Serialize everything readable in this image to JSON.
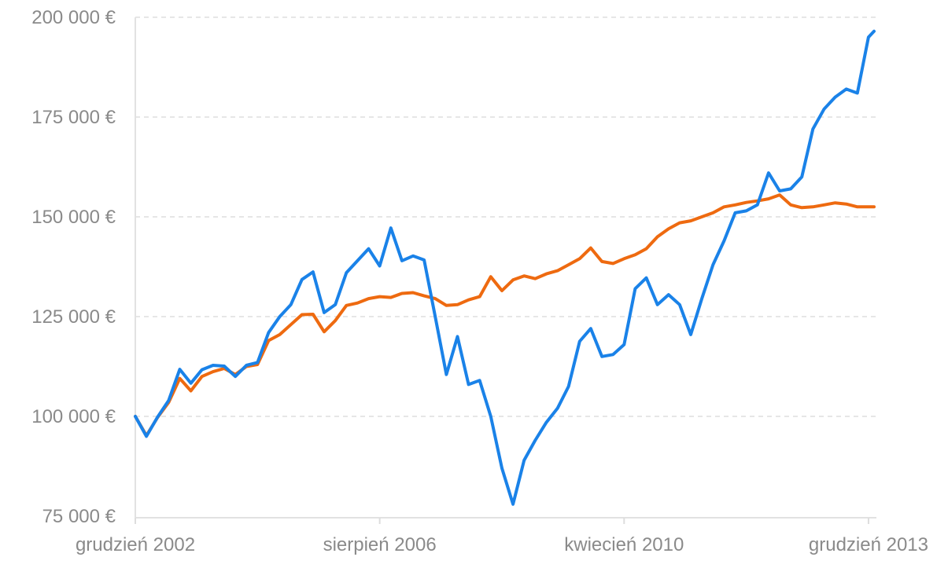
{
  "chart_data": {
    "type": "line",
    "title": "",
    "xlabel": "",
    "ylabel": "",
    "ylim": [
      75000,
      200000
    ],
    "yticks": [
      {
        "value": 75000,
        "label": "75 000 €"
      },
      {
        "value": 100000,
        "label": "100 000 €"
      },
      {
        "value": 125000,
        "label": "125 000 €"
      },
      {
        "value": 150000,
        "label": "150 000 €"
      },
      {
        "value": 175000,
        "label": "175 000 €"
      },
      {
        "value": 200000,
        "label": "200 000 €"
      }
    ],
    "xticks": [
      {
        "x": "2002-12",
        "label": "grudzień 2002"
      },
      {
        "x": "2006-08",
        "label": "sierpień 2006"
      },
      {
        "x": "2010-04",
        "label": "kwiecień 2010"
      },
      {
        "x": "2013-12",
        "label": "grudzień 2013"
      }
    ],
    "x": [
      "2002-12",
      "2003-02",
      "2003-04",
      "2003-06",
      "2003-08",
      "2003-10",
      "2003-12",
      "2004-02",
      "2004-04",
      "2004-06",
      "2004-08",
      "2004-10",
      "2004-12",
      "2005-02",
      "2005-04",
      "2005-06",
      "2005-08",
      "2005-10",
      "2005-12",
      "2006-02",
      "2006-04",
      "2006-06",
      "2006-08",
      "2006-10",
      "2006-12",
      "2007-02",
      "2007-04",
      "2007-06",
      "2007-08",
      "2007-10",
      "2007-12",
      "2008-02",
      "2008-04",
      "2008-06",
      "2008-08",
      "2008-10",
      "2008-12",
      "2009-02",
      "2009-04",
      "2009-06",
      "2009-08",
      "2009-10",
      "2009-12",
      "2010-02",
      "2010-04",
      "2010-06",
      "2010-08",
      "2010-10",
      "2010-12",
      "2011-02",
      "2011-04",
      "2011-06",
      "2011-08",
      "2011-10",
      "2011-12",
      "2012-02",
      "2012-04",
      "2012-06",
      "2012-08",
      "2012-10",
      "2012-12",
      "2013-02",
      "2013-04",
      "2013-06",
      "2013-08",
      "2013-10",
      "2013-12",
      "2014-01"
    ],
    "series": [
      {
        "color": "#1a82e8",
        "values": [
          100000,
          95000,
          99800,
          104000,
          111800,
          108300,
          111700,
          112800,
          112600,
          110000,
          112800,
          113500,
          121000,
          125000,
          128000,
          134300,
          136200,
          126000,
          128000,
          136000,
          139000,
          142000,
          137700,
          147200,
          139000,
          140200,
          139200,
          125000,
          110500,
          120000,
          108000,
          109000,
          100000,
          87000,
          78000,
          89000,
          94000,
          98500,
          102000,
          107500,
          118800,
          122000,
          115000,
          115500,
          118000,
          132000,
          134700,
          128000,
          130500,
          128000,
          120500,
          129500,
          138000,
          144000,
          151000,
          151500,
          153000,
          161000,
          156500,
          157000,
          160000,
          172000,
          177000,
          180000,
          182000,
          181000,
          195000,
          196500
        ]
      },
      {
        "color": "#ee6a10",
        "values": [
          100000,
          95200,
          99700,
          103500,
          109500,
          106400,
          110000,
          111200,
          112000,
          110500,
          112500,
          113000,
          119000,
          120500,
          123000,
          125500,
          125600,
          121200,
          124000,
          127800,
          128400,
          129500,
          130000,
          129800,
          130800,
          131000,
          130200,
          129500,
          127800,
          128000,
          129200,
          130000,
          135000,
          131500,
          134200,
          135200,
          134500,
          135700,
          136500,
          138000,
          139500,
          142200,
          138800,
          138300,
          139500,
          140500,
          142000,
          145000,
          147000,
          148500,
          149000,
          150000,
          151000,
          152500,
          153000,
          153600,
          154000,
          154500,
          155500,
          153000,
          152300,
          152500,
          153000,
          153500,
          153200,
          152500,
          152500,
          152500
        ]
      }
    ]
  }
}
